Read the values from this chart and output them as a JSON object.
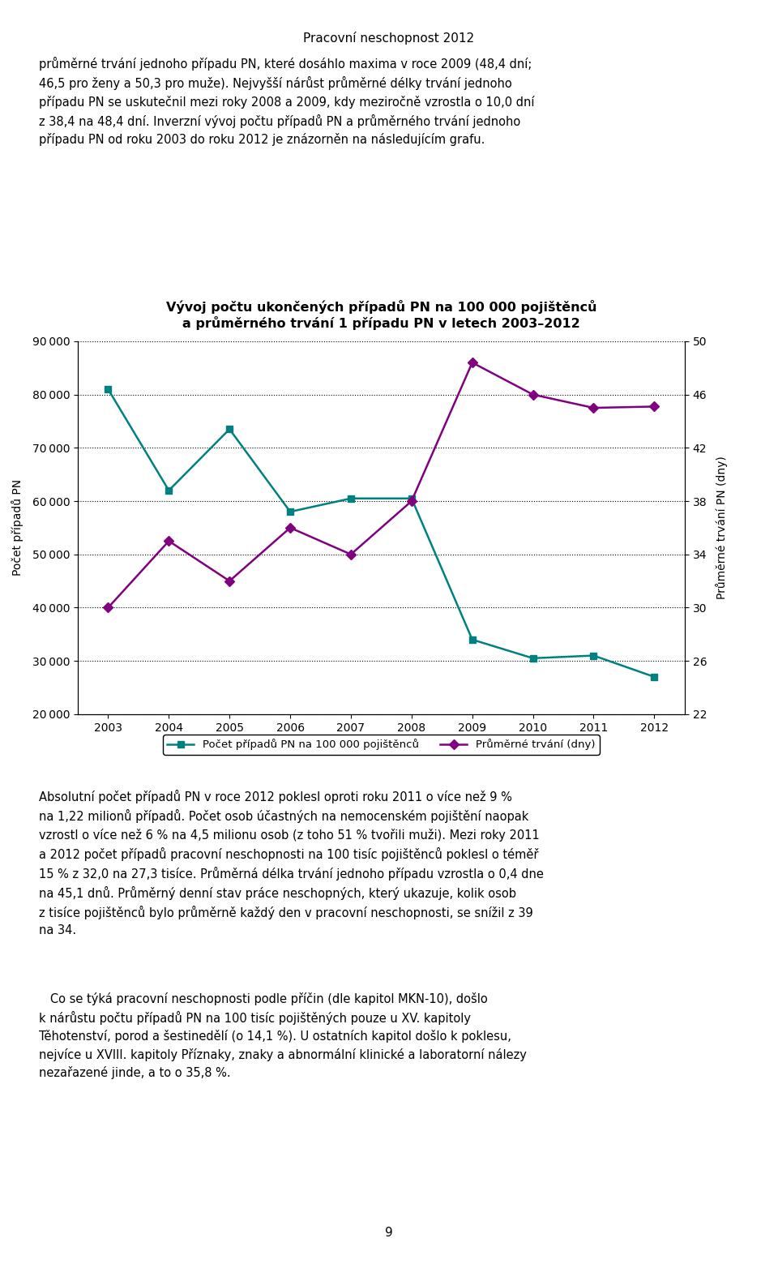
{
  "title_line1": "Vývoj počtu ukončených případů PN na 100 000 pojištěnců",
  "title_line2": "a průměrného trvání 1 případu PN v letech 2003–2012",
  "years": [
    2003,
    2004,
    2005,
    2006,
    2007,
    2008,
    2009,
    2010,
    2011,
    2012
  ],
  "pocet_pn": [
    81000,
    62000,
    73500,
    58000,
    60500,
    60500,
    34000,
    30500,
    31000,
    27000
  ],
  "prumerne_trvani": [
    41000,
    54000,
    46500,
    55000,
    51000,
    55000,
    86000,
    80000,
    77000,
    78000
  ],
  "pocet_color": "#008080",
  "trvani_color": "#800080",
  "ylabel_left": "Počet případů PN",
  "ylabel_right": "Průměrné trvání PN (dny)",
  "legend_pocet": "Počet případů PN na 100 000 pojištěnců",
  "legend_trvani": "Průměrné trvání (dny)",
  "ylim_left": [
    20000,
    90000
  ],
  "ylim_right": [
    22,
    50
  ],
  "yticks_left": [
    20000,
    30000,
    40000,
    50000,
    60000,
    70000,
    80000,
    90000
  ],
  "yticks_right": [
    22,
    26,
    30,
    34,
    38,
    42,
    46,
    50
  ],
  "page_header": "Pracovní neschopnost 2012"
}
